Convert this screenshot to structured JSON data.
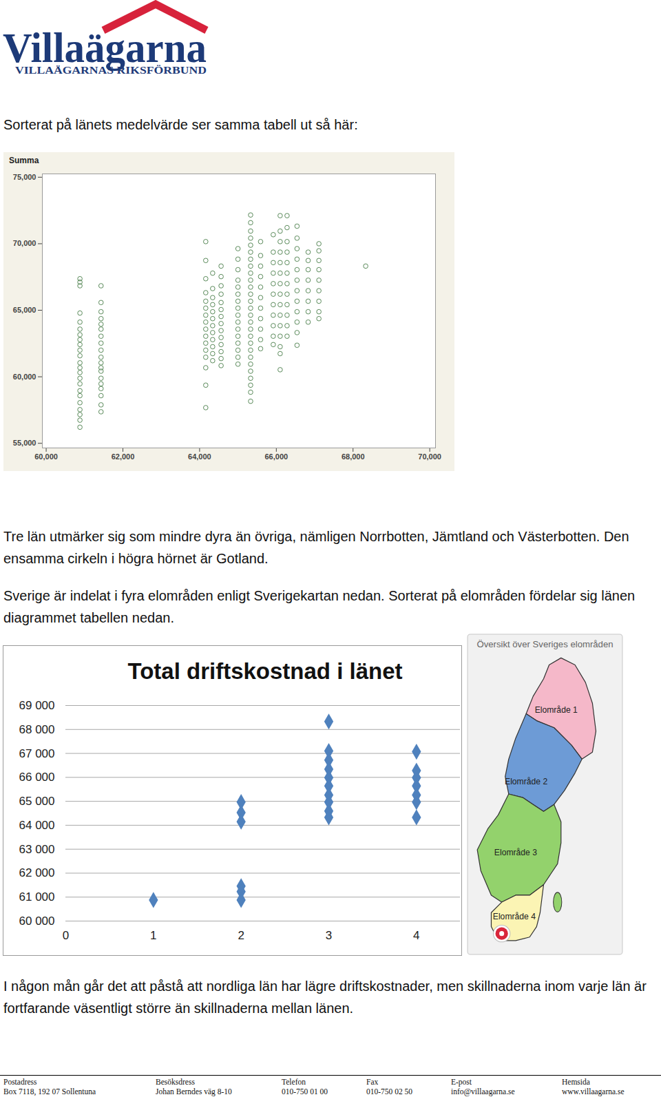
{
  "logo": {
    "name": "Villaägarna",
    "tagline": "VILLAÄGARNAS RIKSFÖRBUND"
  },
  "paragraphs": [
    "Sorterat på länets medelvärde ser samma tabell ut så här:",
    "Tre län utmärker sig som mindre dyra än övriga, nämligen Norrbotten, Jämtland och Västerbotten. Den ensamma cirkeln i högra hörnet är Gotland.",
    "Sverige är indelat i fyra elområden enligt Sverigekartan nedan. Sorterat på elområden fördelar sig länen diagrammet tabellen nedan.",
    "I någon mån går det att påstå att nordliga län har lägre driftskostnader, men skillnaderna inom varje län är fortfarande väsentligt större än skillnaderna mellan länen."
  ],
  "chart_data": [
    {
      "type": "scatter",
      "ylabel": "Summa",
      "marker": "circle",
      "color": "#5a8a5a",
      "grid": false,
      "xlim": [
        59900,
        70150
      ],
      "ylim": [
        54650,
        75250
      ],
      "xticks": [
        {
          "value": 60000,
          "label": "60,000"
        },
        {
          "value": 62000,
          "label": "62,000"
        },
        {
          "value": 64000,
          "label": "64,000"
        },
        {
          "value": 66000,
          "label": "66,000"
        },
        {
          "value": 68000,
          "label": "68,000"
        },
        {
          "value": 70000,
          "label": "70,000"
        }
      ],
      "yticks": [
        {
          "value": 55000,
          "label": "55,000"
        },
        {
          "value": 60000,
          "label": "60,000"
        },
        {
          "value": 65000,
          "label": "65,000"
        },
        {
          "value": 70000,
          "label": "70,000"
        },
        {
          "value": 75000,
          "label": "75,000"
        }
      ],
      "columns": [
        {
          "x": 60880,
          "values": [
            67370,
            67110,
            66840,
            64790,
            64110,
            63580,
            63160,
            62790,
            62420,
            62000,
            61580,
            61050,
            60680,
            60320,
            59890,
            59470,
            58950,
            58580,
            58050,
            57530,
            57160,
            56740,
            56210
          ]
        },
        {
          "x": 61430,
          "values": [
            66840,
            65580,
            64890,
            64370,
            63950,
            63580,
            63050,
            62530,
            62000,
            61470,
            61050,
            60680,
            60420,
            59890,
            59470,
            59110,
            58580,
            57890,
            57370
          ]
        },
        {
          "x": 64160,
          "values": [
            70160,
            68740,
            67370,
            66320,
            65680,
            65160,
            64630,
            64110,
            63580,
            63050,
            62530,
            62000,
            61470,
            60680,
            59370,
            57680
          ]
        },
        {
          "x": 64340,
          "values": [
            67790,
            66630,
            65950,
            65420,
            64890,
            64370,
            63840,
            63320,
            62790,
            62260,
            61740,
            61210
          ]
        },
        {
          "x": 64560,
          "values": [
            68320,
            67530,
            66840,
            66210,
            65580,
            65050,
            64530,
            64000,
            63470,
            62950,
            62420,
            61890,
            61370,
            60840
          ]
        },
        {
          "x": 65000,
          "values": [
            69630,
            68840,
            68050,
            67260,
            66740,
            66210,
            65680,
            65160,
            64630,
            64110,
            63580,
            63050,
            62530,
            62000,
            61470,
            60950
          ]
        },
        {
          "x": 65330,
          "values": [
            72160,
            71580,
            70950,
            70420,
            69890,
            69370,
            68840,
            68320,
            67790,
            67260,
            66740,
            66210,
            65680,
            65160,
            64630,
            64110,
            63580,
            63050,
            62530,
            62000,
            61470,
            60950,
            60420,
            59890,
            59370,
            58840,
            58160
          ]
        },
        {
          "x": 65590,
          "values": [
            70160,
            69110,
            68320,
            67530,
            66740,
            65950,
            65160,
            64370,
            63580,
            62790,
            62110
          ]
        },
        {
          "x": 65920,
          "values": [
            70680,
            69370,
            68580,
            67790,
            67000,
            66210,
            65420,
            64630,
            63840,
            63050,
            62420
          ]
        },
        {
          "x": 66100,
          "values": [
            72110,
            70950,
            70160,
            69370,
            68580,
            67790,
            67000,
            66210,
            65420,
            64630,
            63840,
            63050,
            62260,
            61740,
            60530
          ]
        },
        {
          "x": 66280,
          "values": [
            72110,
            71210,
            70160,
            69370,
            68580,
            67790,
            67000,
            66210,
            65420,
            64630,
            63840,
            63050
          ]
        },
        {
          "x": 66540,
          "values": [
            71320,
            70420,
            69630,
            68840,
            68050,
            67260,
            66470,
            65680,
            64890,
            64110,
            63320,
            62370
          ]
        },
        {
          "x": 66830,
          "values": [
            69370,
            68740,
            68050,
            67260,
            66470,
            65680,
            64890,
            64110
          ]
        },
        {
          "x": 67110,
          "values": [
            70000,
            69470,
            68740,
            68050,
            67260,
            66470,
            65680,
            64890,
            64370
          ]
        },
        {
          "x": 68330,
          "values": [
            68320
          ]
        }
      ]
    },
    {
      "type": "scatter",
      "title": "Total driftskostnad i länet",
      "marker": "diamond",
      "color": "#4f81bd",
      "grid": true,
      "xlim": [
        0,
        4.5
      ],
      "xticks": [
        0,
        1,
        2,
        3,
        4
      ],
      "ylim": [
        60000,
        69000
      ],
      "yticks": [
        {
          "value": 60000,
          "label": "60 000"
        },
        {
          "value": 61000,
          "label": "61 000"
        },
        {
          "value": 62000,
          "label": "62 000"
        },
        {
          "value": 63000,
          "label": "63 000"
        },
        {
          "value": 64000,
          "label": "64 000"
        },
        {
          "value": 65000,
          "label": "65 000"
        },
        {
          "value": 66000,
          "label": "66 000"
        },
        {
          "value": 67000,
          "label": "67 000"
        },
        {
          "value": 68000,
          "label": "68 000"
        },
        {
          "value": 69000,
          "label": "69 000"
        }
      ],
      "columns": [
        {
          "x": 1,
          "values": [
            60880
          ]
        },
        {
          "x": 2,
          "values": [
            64970,
            64530,
            64150,
            61460,
            61230,
            60880
          ]
        },
        {
          "x": 3,
          "values": [
            68330,
            67100,
            66720,
            66340,
            65990,
            65640,
            65260,
            64970,
            64590,
            64330
          ]
        },
        {
          "x": 4,
          "values": [
            67070,
            66280,
            65990,
            65640,
            65260,
            64970,
            64330
          ]
        }
      ]
    }
  ],
  "map": {
    "title": "Översikt över Sveriges elområden",
    "regions": [
      {
        "label": "Elområde 1",
        "color": "#f5b8c9"
      },
      {
        "label": "Elområde 2",
        "color": "#6d9bd6"
      },
      {
        "label": "Elområde 3",
        "color": "#93d26c"
      },
      {
        "label": "Elområde 4",
        "color": "#fbf4b4"
      }
    ]
  },
  "footer": [
    {
      "label": "Postadress",
      "value": "Box 7118, 192 07 Sollentuna"
    },
    {
      "label": "Besöksdress",
      "value": "Johan Berndes väg 8-10"
    },
    {
      "label": "Telefon",
      "value": "010-750 01 00"
    },
    {
      "label": "Fax",
      "value": "010-750 02 50"
    },
    {
      "label": "E-post",
      "value": "info@villaagarna.se"
    },
    {
      "label": "Hemsida",
      "value": "www.villaagarna.se"
    }
  ]
}
